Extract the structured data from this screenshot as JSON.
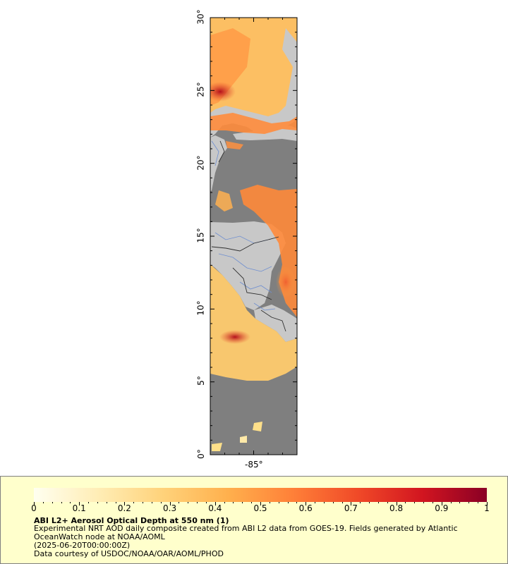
{
  "map": {
    "lat_labels": [
      "30°",
      "25°",
      "20°",
      "15°",
      "10°",
      "5°",
      "0°"
    ],
    "lat_values": [
      30,
      25,
      20,
      15,
      10,
      5,
      0
    ],
    "lon_labels": [
      "-85°"
    ],
    "lon_values": [
      -85
    ],
    "colors": {
      "ocean": "#7f7f7f",
      "land": "#c8c8c8",
      "rivers": "#6f8fd0",
      "borders": "#303030"
    }
  },
  "legend": {
    "colorbar_stops": [
      "#fffff0",
      "#ffedb5",
      "#ffd27a",
      "#ffb04d",
      "#ff8038",
      "#f04a28",
      "#d21520",
      "#8a0025"
    ],
    "tick_labels": [
      "0",
      "0.1",
      "0.2",
      "0.3",
      "0.4",
      "0.5",
      "0.6",
      "0.7",
      "0.8",
      "0.9",
      "1"
    ],
    "tick_values": [
      0,
      0.1,
      0.2,
      0.3,
      0.4,
      0.5,
      0.6,
      0.7,
      0.8,
      0.9,
      1
    ],
    "title": "ABI L2+ Aerosol Optical Depth at 550 nm (1)",
    "line1": "Experimental NRT AOD daily composite created from ABI L2 data from GOES-19. Fields generated by Atlantic",
    "line2": "OceanWatch node at NOAA/AOML",
    "line3": "(2025-06-20T00:00:00Z)",
    "line4": "Data courtesy of USDOC/NOAA/OAR/AOML/PHOD"
  }
}
